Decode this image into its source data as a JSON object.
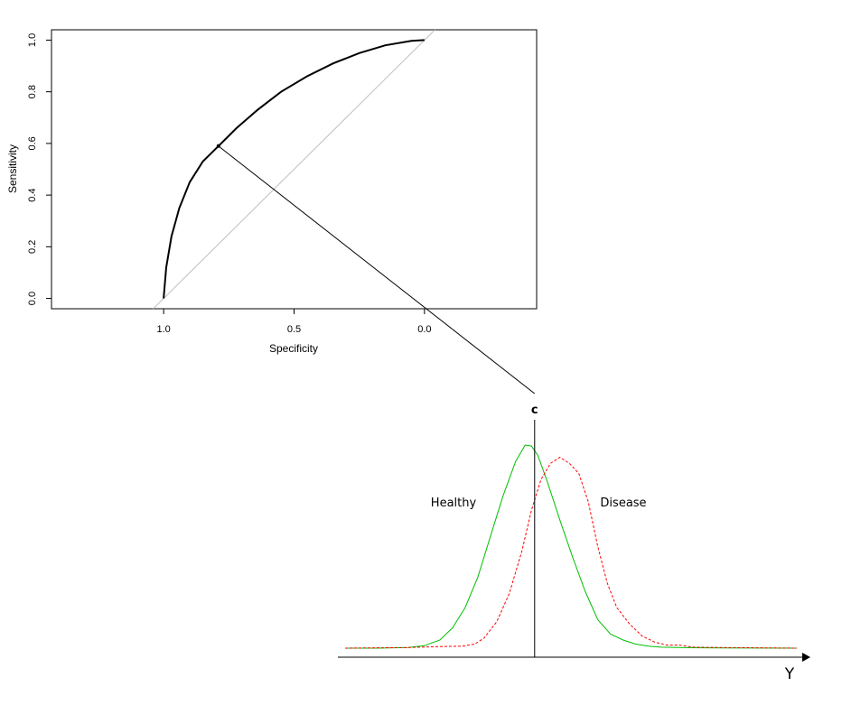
{
  "chart_data": [
    {
      "type": "line",
      "name": "roc",
      "xlabel": "Specificity",
      "ylabel": "Sensitivity",
      "x_reversed": true,
      "xlim": [
        1.43,
        -0.43
      ],
      "ylim": [
        -0.04,
        1.04
      ],
      "x_ticks": [
        1.0,
        0.5,
        0.0
      ],
      "x_tick_labels": [
        "1.0",
        "0.5",
        "0.0"
      ],
      "y_ticks": [
        0.0,
        0.2,
        0.4,
        0.6,
        0.8,
        1.0
      ],
      "y_tick_labels": [
        "0.0",
        "0.2",
        "0.4",
        "0.6",
        "0.8",
        "1.0"
      ],
      "grid": false,
      "curve": {
        "specificity": [
          1.0,
          0.99,
          0.97,
          0.94,
          0.9,
          0.85,
          0.79,
          0.72,
          0.64,
          0.55,
          0.45,
          0.35,
          0.25,
          0.15,
          0.05,
          0.0
        ],
        "sensitivity": [
          0.0,
          0.12,
          0.24,
          0.35,
          0.45,
          0.53,
          0.59,
          0.66,
          0.73,
          0.8,
          0.86,
          0.91,
          0.95,
          0.98,
          0.997,
          1.0
        ]
      },
      "diagonal": {
        "specificity": [
          1.0,
          0.0
        ],
        "sensitivity": [
          0.0,
          1.0
        ],
        "color": "#c0c0c0"
      },
      "highlight_point": {
        "specificity": 0.79,
        "sensitivity": 0.59
      }
    },
    {
      "type": "line",
      "name": "densities",
      "x_axis_label": "Y",
      "cutoff_label": "c",
      "cutoff": 0,
      "xlim": [
        -6,
        8.3
      ],
      "ylim": [
        0,
        1.0
      ],
      "series": [
        {
          "name": "Healthy",
          "color": "#00c000",
          "dash": "solid",
          "x": [
            -6,
            -5,
            -4,
            -3.5,
            -3,
            -2.6,
            -2.2,
            -1.8,
            -1.4,
            -1.0,
            -0.6,
            -0.3,
            -0.1,
            0.1,
            0.4,
            0.8,
            1.2,
            1.6,
            2.0,
            2.4,
            2.8,
            3.2,
            3.6,
            4.0,
            5.0,
            6.0,
            8.3
          ],
          "y": [
            0.0,
            0.0,
            0.003,
            0.012,
            0.04,
            0.1,
            0.2,
            0.35,
            0.55,
            0.75,
            0.92,
            1.0,
            0.995,
            0.95,
            0.82,
            0.63,
            0.45,
            0.28,
            0.14,
            0.07,
            0.04,
            0.02,
            0.01,
            0.005,
            0.002,
            0.001,
            0.0
          ]
        },
        {
          "name": "Disease",
          "color": "#ff0000",
          "dash": "dashed",
          "x": [
            -6,
            -4,
            -3,
            -2.3,
            -1.9,
            -1.6,
            -1.2,
            -0.8,
            -0.4,
            -0.1,
            0.2,
            0.5,
            0.8,
            1.1,
            1.4,
            1.7,
            2.0,
            2.3,
            2.6,
            3.0,
            3.4,
            3.8,
            4.2,
            4.6,
            5.0,
            6.0,
            8.3
          ],
          "y": [
            0.0,
            0.003,
            0.008,
            0.01,
            0.02,
            0.05,
            0.13,
            0.27,
            0.48,
            0.68,
            0.83,
            0.91,
            0.94,
            0.91,
            0.86,
            0.72,
            0.5,
            0.32,
            0.2,
            0.12,
            0.06,
            0.03,
            0.015,
            0.015,
            0.005,
            0.003,
            0.0
          ]
        }
      ]
    }
  ]
}
